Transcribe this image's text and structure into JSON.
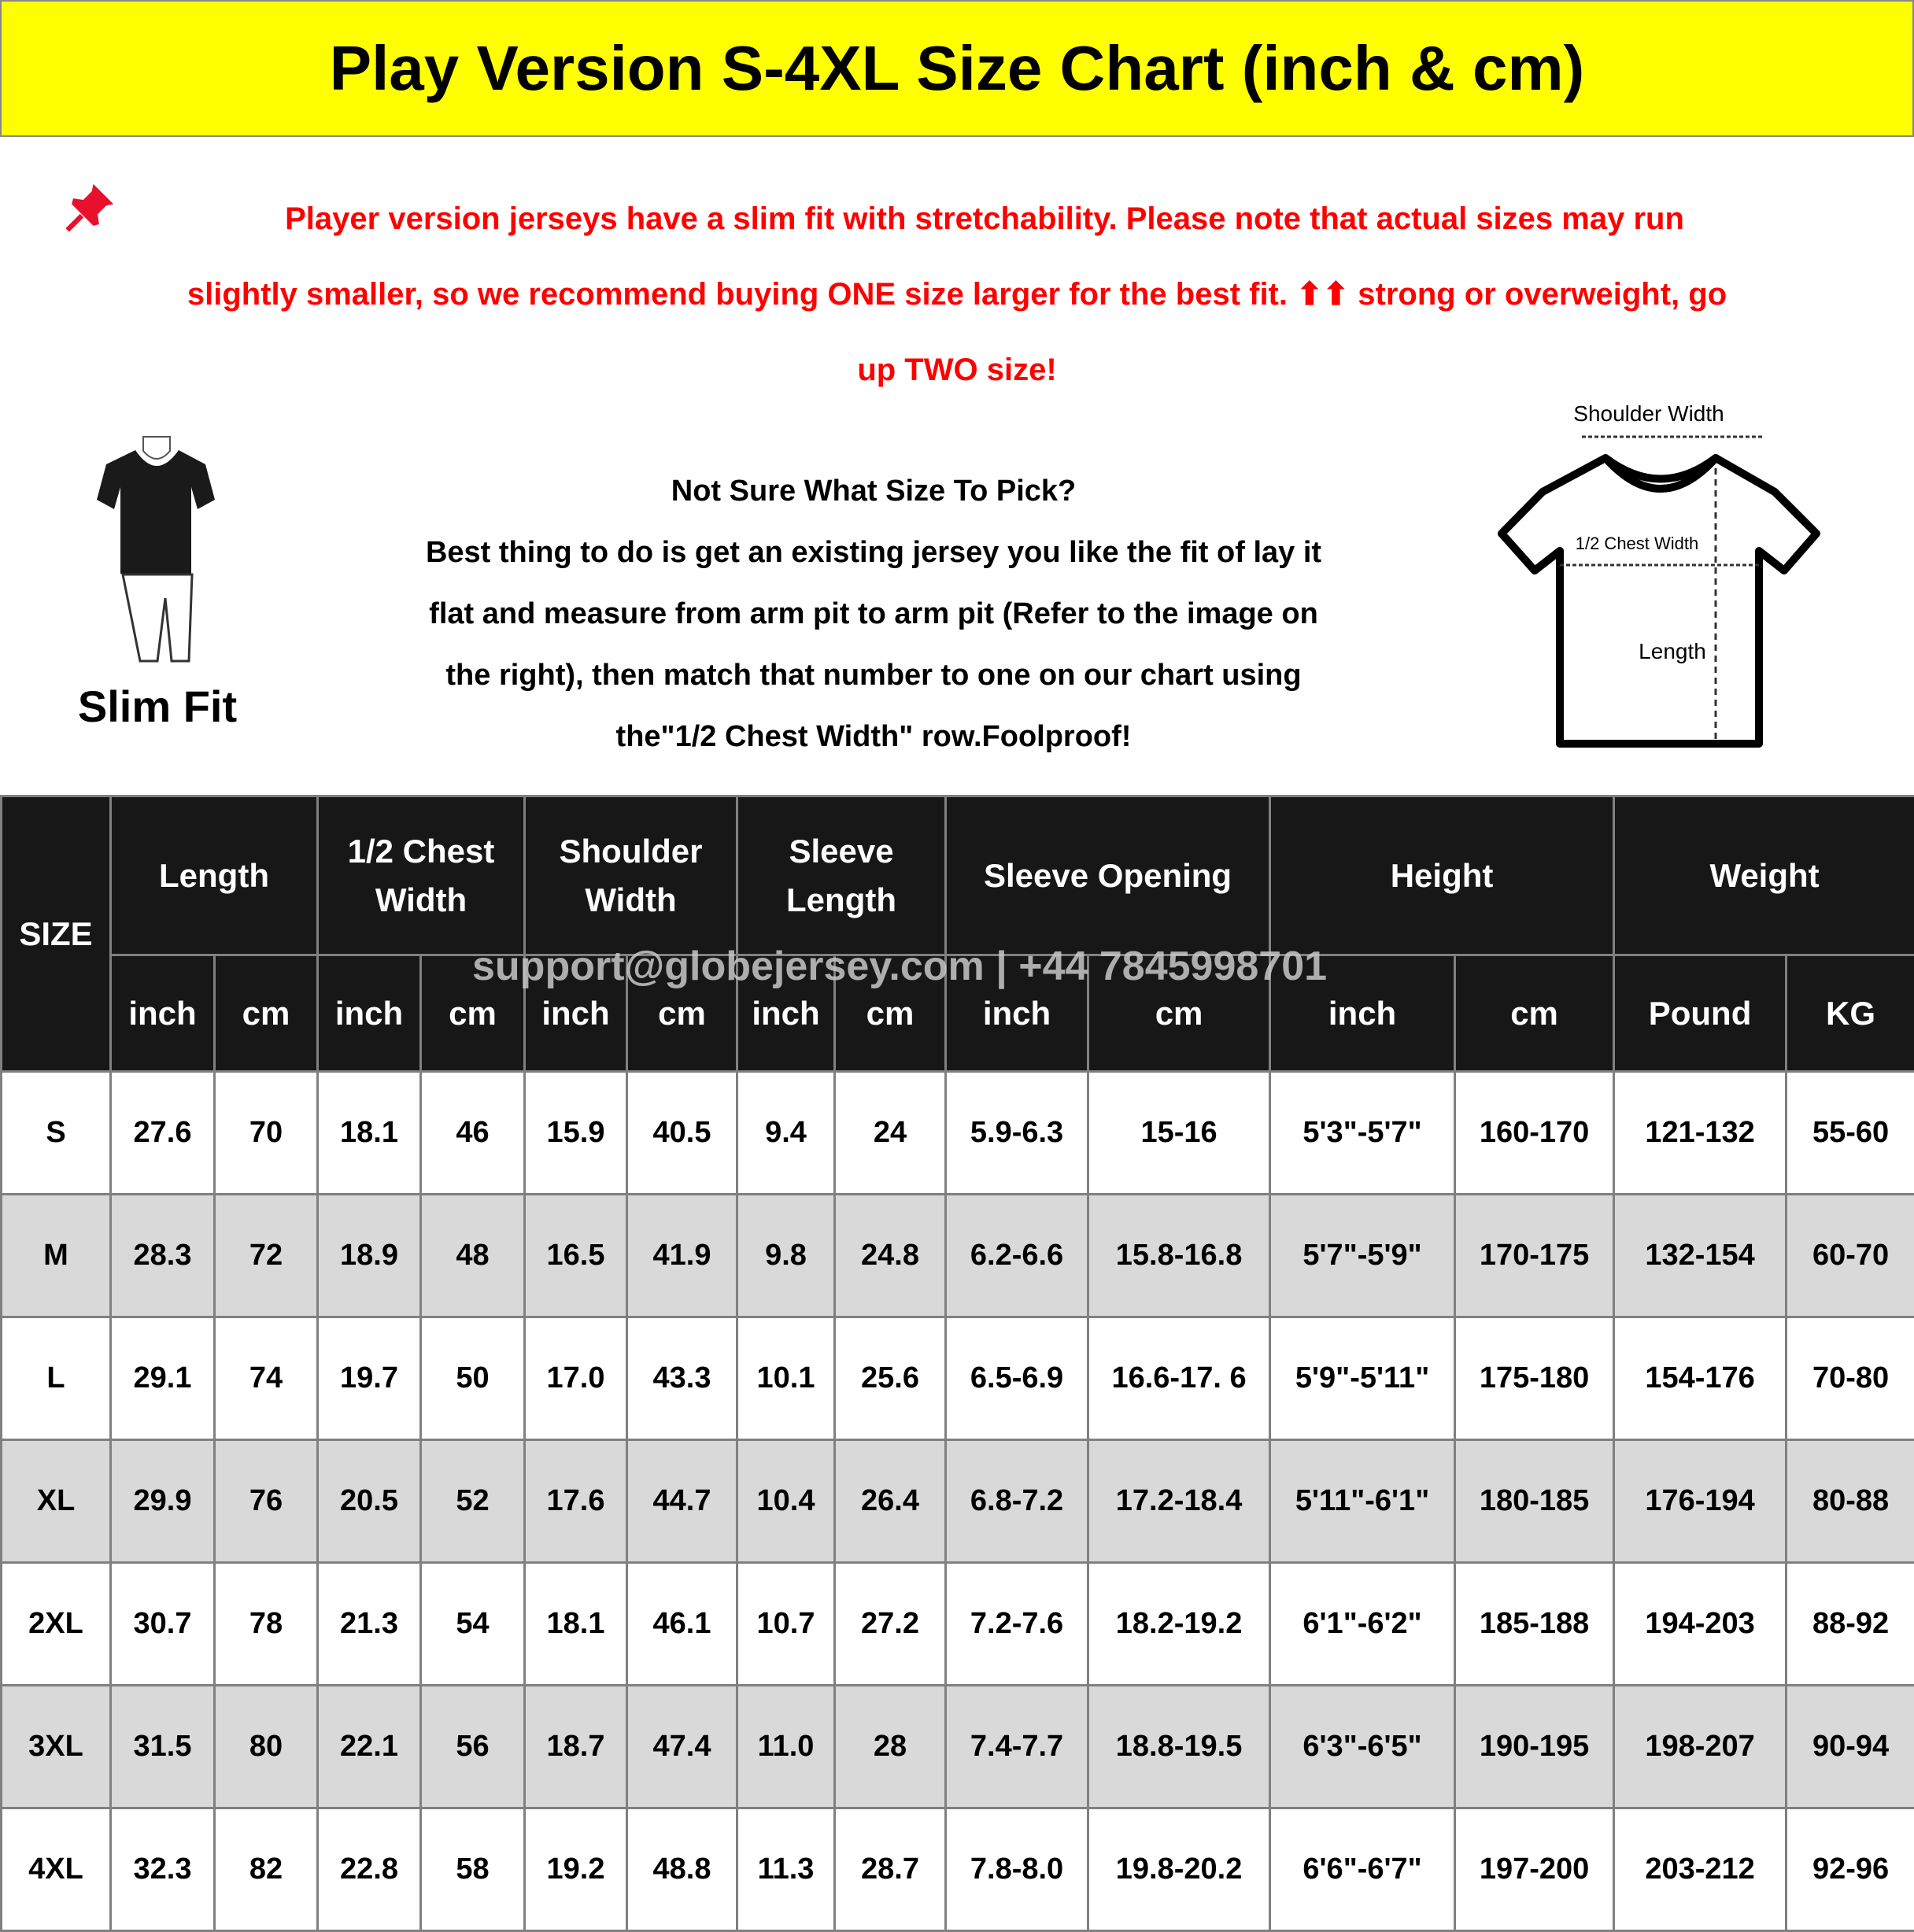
{
  "title": "Play Version S-4XL Size Chart (inch & cm)",
  "notice": {
    "icon": "pushpin-icon",
    "lines": [
      "Player version jerseys have a slim fit with stretchability. Please note that actual sizes may run",
      "slightly smaller, so we recommend buying ONE size larger for the best fit. ⬆⬆ strong or overweight, go",
      "up TWO size!"
    ]
  },
  "slim_fit_label": "Slim Fit",
  "guide": {
    "lines": [
      "Not Sure What Size To Pick?",
      "Best thing to do is get an existing jersey you like the fit of lay it",
      "flat and measure from arm pit to arm pit (Refer to the image on",
      "the right), then match that number to one on our chart using",
      "the\"1/2 Chest Width\" row.Foolproof!"
    ]
  },
  "diagram": {
    "shoulder": "Shoulder Width",
    "chest": "1/2 Chest Width",
    "length": "Length"
  },
  "watermark": "support@globejersey.com | +44 7845998701",
  "table": {
    "size_header": "SIZE",
    "groups": [
      "Length",
      "1/2 Chest Width",
      "Shoulder Width",
      "Sleeve Length",
      "Sleeve Opening",
      "Height",
      "Weight"
    ],
    "units": [
      "inch",
      "cm",
      "inch",
      "cm",
      "inch",
      "cm",
      "inch",
      "cm",
      "inch",
      "cm",
      "inch",
      "cm",
      "Pound",
      "KG"
    ],
    "rows": [
      [
        "S",
        "27.6",
        "70",
        "18.1",
        "46",
        "15.9",
        "40.5",
        "9.4",
        "24",
        "5.9-6.3",
        "15-16",
        "5'3\"-5'7\"",
        "160-170",
        "121-132",
        "55-60"
      ],
      [
        "M",
        "28.3",
        "72",
        "18.9",
        "48",
        "16.5",
        "41.9",
        "9.8",
        "24.8",
        "6.2-6.6",
        "15.8-16.8",
        "5'7\"-5'9\"",
        "170-175",
        "132-154",
        "60-70"
      ],
      [
        "L",
        "29.1",
        "74",
        "19.7",
        "50",
        "17.0",
        "43.3",
        "10.1",
        "25.6",
        "6.5-6.9",
        "16.6-17. 6",
        "5'9\"-5'11\"",
        "175-180",
        "154-176",
        "70-80"
      ],
      [
        "XL",
        "29.9",
        "76",
        "20.5",
        "52",
        "17.6",
        "44.7",
        "10.4",
        "26.4",
        "6.8-7.2",
        "17.2-18.4",
        "5'11\"-6'1\"",
        "180-185",
        "176-194",
        "80-88"
      ],
      [
        "2XL",
        "30.7",
        "78",
        "21.3",
        "54",
        "18.1",
        "46.1",
        "10.7",
        "27.2",
        "7.2-7.6",
        "18.2-19.2",
        "6'1\"-6'2\"",
        "185-188",
        "194-203",
        "88-92"
      ],
      [
        "3XL",
        "31.5",
        "80",
        "22.1",
        "56",
        "18.7",
        "47.4",
        "11.0",
        "28",
        "7.4-7.7",
        "18.8-19.5",
        "6'3\"-6'5\"",
        "190-195",
        "198-207",
        "90-94"
      ],
      [
        "4XL",
        "32.3",
        "82",
        "22.8",
        "58",
        "19.2",
        "48.8",
        "11.3",
        "28.7",
        "7.8-8.0",
        "19.8-20.2",
        "6'6\"-6'7\"",
        "197-200",
        "203-212",
        "92-96"
      ]
    ]
  },
  "colors": {
    "title_bg": "#ffff00",
    "notice": "#ff0000",
    "header_bg": "#171717",
    "alt_row": "#d9d9d9"
  }
}
